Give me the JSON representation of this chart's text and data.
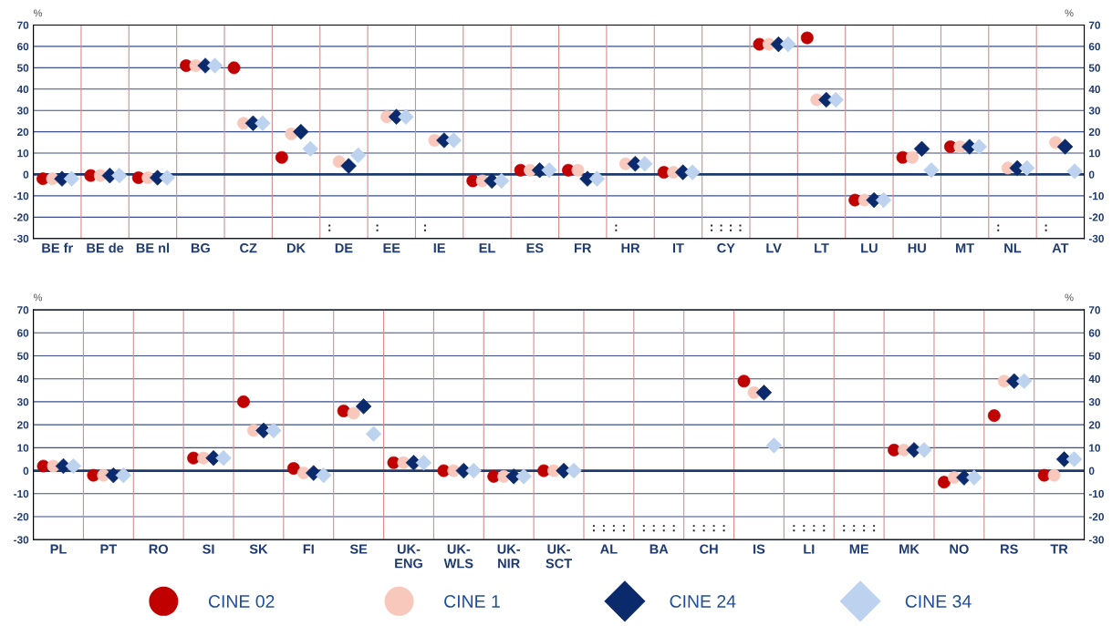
{
  "chart_data": [
    {
      "type": "scatter",
      "ylabel": "%",
      "y2label": "%",
      "categories": [
        "BE fr",
        "BE de",
        "BE nl",
        "BG",
        "CZ",
        "DK",
        "DE",
        "EE",
        "IE",
        "EL",
        "ES",
        "FR",
        "HR",
        "IT",
        "CY",
        "LV",
        "LT",
        "LU",
        "HU",
        "MT",
        "NL",
        "AT"
      ],
      "series": [
        {
          "color": "#c00000",
          "marker": "circle",
          "values": [
            -2,
            -0.5,
            -1.5,
            51,
            50,
            8,
            null,
            null,
            null,
            -3,
            2,
            2,
            null,
            1,
            null,
            61,
            64,
            -12,
            8,
            13,
            null,
            null
          ],
          "value_labels": [
            null,
            null,
            null,
            null,
            null,
            null,
            ":",
            ":",
            ":",
            null,
            null,
            null,
            ":",
            null,
            ":",
            null,
            null,
            null,
            null,
            null,
            ":",
            ":"
          ]
        },
        {
          "color": "#f8c8bc",
          "marker": "circle",
          "values": [
            -2,
            -0.5,
            -1.5,
            51,
            24,
            19,
            6,
            27,
            16,
            -3,
            2,
            2,
            5,
            1,
            null,
            61,
            35,
            -12,
            8,
            13,
            3,
            15
          ],
          "value_labels": [
            null,
            null,
            null,
            null,
            null,
            null,
            null,
            null,
            null,
            null,
            null,
            null,
            null,
            null,
            ":",
            null,
            null,
            null,
            null,
            null,
            null,
            null
          ]
        },
        {
          "color": "#0a2a6b",
          "marker": "diamond",
          "values": [
            -2,
            -0.5,
            -1.5,
            51,
            24,
            20,
            4,
            27,
            16,
            -3,
            2,
            -2,
            5,
            1,
            null,
            61,
            35,
            -12,
            12,
            13,
            3,
            13
          ],
          "value_labels": [
            null,
            null,
            null,
            null,
            null,
            null,
            null,
            null,
            null,
            null,
            null,
            null,
            null,
            null,
            ":",
            null,
            null,
            null,
            null,
            null,
            null,
            null
          ]
        },
        {
          "color": "#bcd2ee",
          "marker": "diamond",
          "values": [
            -2,
            -0.5,
            -1.5,
            51,
            24,
            12,
            9,
            27,
            16,
            -3,
            2,
            -2,
            5,
            1,
            null,
            61,
            35,
            -12,
            2,
            13,
            3,
            1.5
          ],
          "value_labels": [
            null,
            null,
            null,
            null,
            null,
            null,
            null,
            null,
            null,
            null,
            null,
            null,
            null,
            null,
            ":",
            null,
            null,
            null,
            null,
            null,
            null,
            null
          ]
        }
      ],
      "ylim": [
        -30,
        70
      ],
      "yticks": [
        -30,
        -20,
        -10,
        0,
        10,
        20,
        30,
        40,
        50,
        60,
        70
      ],
      "y2lim": [
        -30,
        70
      ],
      "y2ticks": [
        -30,
        -20,
        -10,
        0,
        10,
        20,
        30,
        40,
        50,
        60,
        70
      ],
      "ref_lines": [
        {
          "axis": "y",
          "value": 0,
          "color": "#1f3a6e"
        }
      ],
      "grid": true
    },
    {
      "type": "scatter",
      "ylabel": "%",
      "y2label": "%",
      "categories": [
        "PL",
        "PT",
        "RO",
        "SI",
        "SK",
        "FI",
        "SE",
        "UK-\nENG",
        "UK-\nWLS",
        "UK-\nNIR",
        "UK-\nSCT",
        "AL",
        "BA",
        "CH",
        "IS",
        "LI",
        "ME",
        "MK",
        "NO",
        "RS",
        "TR"
      ],
      "series": [
        {
          "name": "CINE 02",
          "color": "#c00000",
          "marker": "circle",
          "values": [
            2,
            -2,
            null,
            5.5,
            30,
            1,
            26,
            3.5,
            0,
            -2.5,
            0,
            null,
            null,
            null,
            39,
            null,
            null,
            9,
            -5,
            24,
            -2
          ],
          "value_labels": [
            null,
            null,
            null,
            null,
            null,
            null,
            null,
            null,
            null,
            null,
            null,
            ":",
            ":",
            ":",
            null,
            ":",
            ":",
            null,
            null,
            null,
            null
          ]
        },
        {
          "name": "CINE 1",
          "color": "#f8c8bc",
          "marker": "circle",
          "values": [
            2,
            -2,
            null,
            5.5,
            17.5,
            -1,
            25,
            3.5,
            0,
            -2.5,
            0,
            null,
            null,
            null,
            34,
            null,
            null,
            9,
            -3,
            39,
            -2
          ],
          "value_labels": [
            null,
            null,
            null,
            null,
            null,
            null,
            null,
            null,
            null,
            null,
            null,
            ":",
            ":",
            ":",
            null,
            ":",
            ":",
            null,
            null,
            null,
            null
          ]
        },
        {
          "name": "CINE 24",
          "color": "#0a2a6b",
          "marker": "diamond",
          "values": [
            2,
            -2,
            null,
            5.5,
            17.5,
            -1,
            28,
            3.5,
            0,
            -2.5,
            0,
            null,
            null,
            null,
            34,
            null,
            null,
            9,
            -3,
            39,
            5
          ],
          "value_labels": [
            null,
            null,
            null,
            null,
            null,
            null,
            null,
            null,
            null,
            null,
            null,
            ":",
            ":",
            ":",
            null,
            ":",
            ":",
            null,
            null,
            null,
            null
          ]
        },
        {
          "name": "CINE 34",
          "color": "#bcd2ee",
          "marker": "diamond",
          "values": [
            2,
            -2,
            null,
            5.5,
            17.5,
            -2,
            16,
            3.5,
            0,
            -2.5,
            0,
            null,
            null,
            null,
            11,
            null,
            null,
            9,
            -3,
            39,
            5
          ],
          "value_labels": [
            null,
            null,
            null,
            null,
            null,
            null,
            null,
            null,
            null,
            null,
            null,
            ":",
            ":",
            ":",
            null,
            ":",
            ":",
            null,
            null,
            null,
            null
          ]
        }
      ],
      "ylim": [
        -30,
        70
      ],
      "yticks": [
        -30,
        -20,
        -10,
        0,
        10,
        20,
        30,
        40,
        50,
        60,
        70
      ],
      "y2lim": [
        -30,
        70
      ],
      "y2ticks": [
        -30,
        -20,
        -10,
        0,
        10,
        20,
        30,
        40,
        50,
        60,
        70
      ],
      "ref_lines": [
        {
          "axis": "y",
          "value": 0,
          "color": "#1f3a6e"
        }
      ],
      "grid": true,
      "legend": "bottom"
    }
  ]
}
